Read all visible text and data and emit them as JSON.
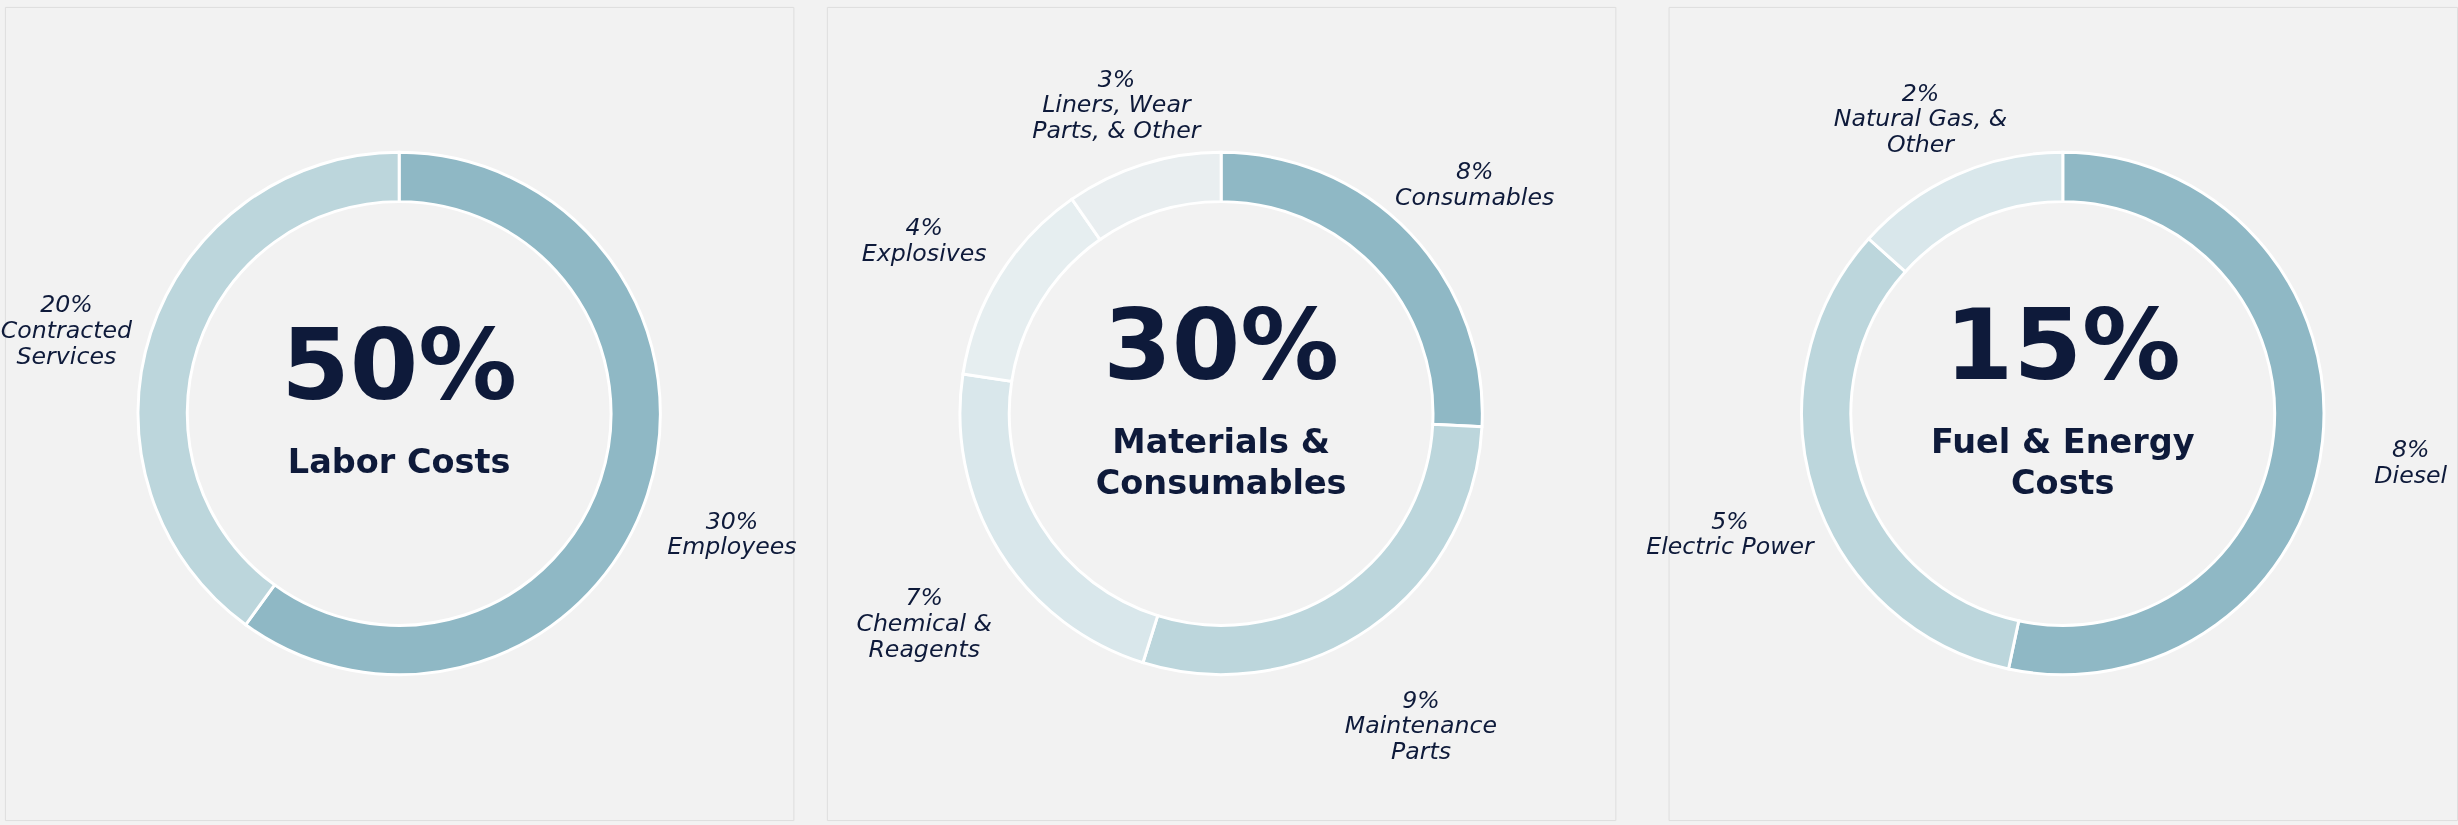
{
  "chart_data": [
    {
      "type": "donut",
      "title": "50%",
      "subtitle": "Labor Costs",
      "categories": [
        "Employees",
        "Contracted Services"
      ],
      "values": [
        30,
        20
      ],
      "colors": [
        "#8fb8c5",
        "#bcd6dc"
      ],
      "value_labels": [
        "30%",
        "20%"
      ]
    },
    {
      "type": "donut",
      "title": "30%",
      "subtitle": "Materials &\nConsumables",
      "categories": [
        "Consumables",
        "Maintenance Parts",
        "Chemical & Reagents",
        "Explosives",
        "Liners, Wear Parts, & Other"
      ],
      "values": [
        8,
        9,
        7,
        4,
        3
      ],
      "colors": [
        "#8fb8c5",
        "#bcd6dc",
        "#d9e7eb",
        "#e6eef0",
        "#e9eef0"
      ],
      "value_labels": [
        "8%",
        "9%",
        "7%",
        "4%",
        "3%"
      ]
    },
    {
      "type": "donut",
      "title": "15%",
      "subtitle": "Fuel & Energy\nCosts",
      "categories": [
        "Diesel",
        "Electric Power",
        "Natural Gas, & Other"
      ],
      "values": [
        8,
        5,
        2
      ],
      "colors": [
        "#8fb8c5",
        "#bcd6dc",
        "#d9e7eb"
      ],
      "value_labels": [
        "8%",
        "5%",
        "2%"
      ]
    }
  ]
}
